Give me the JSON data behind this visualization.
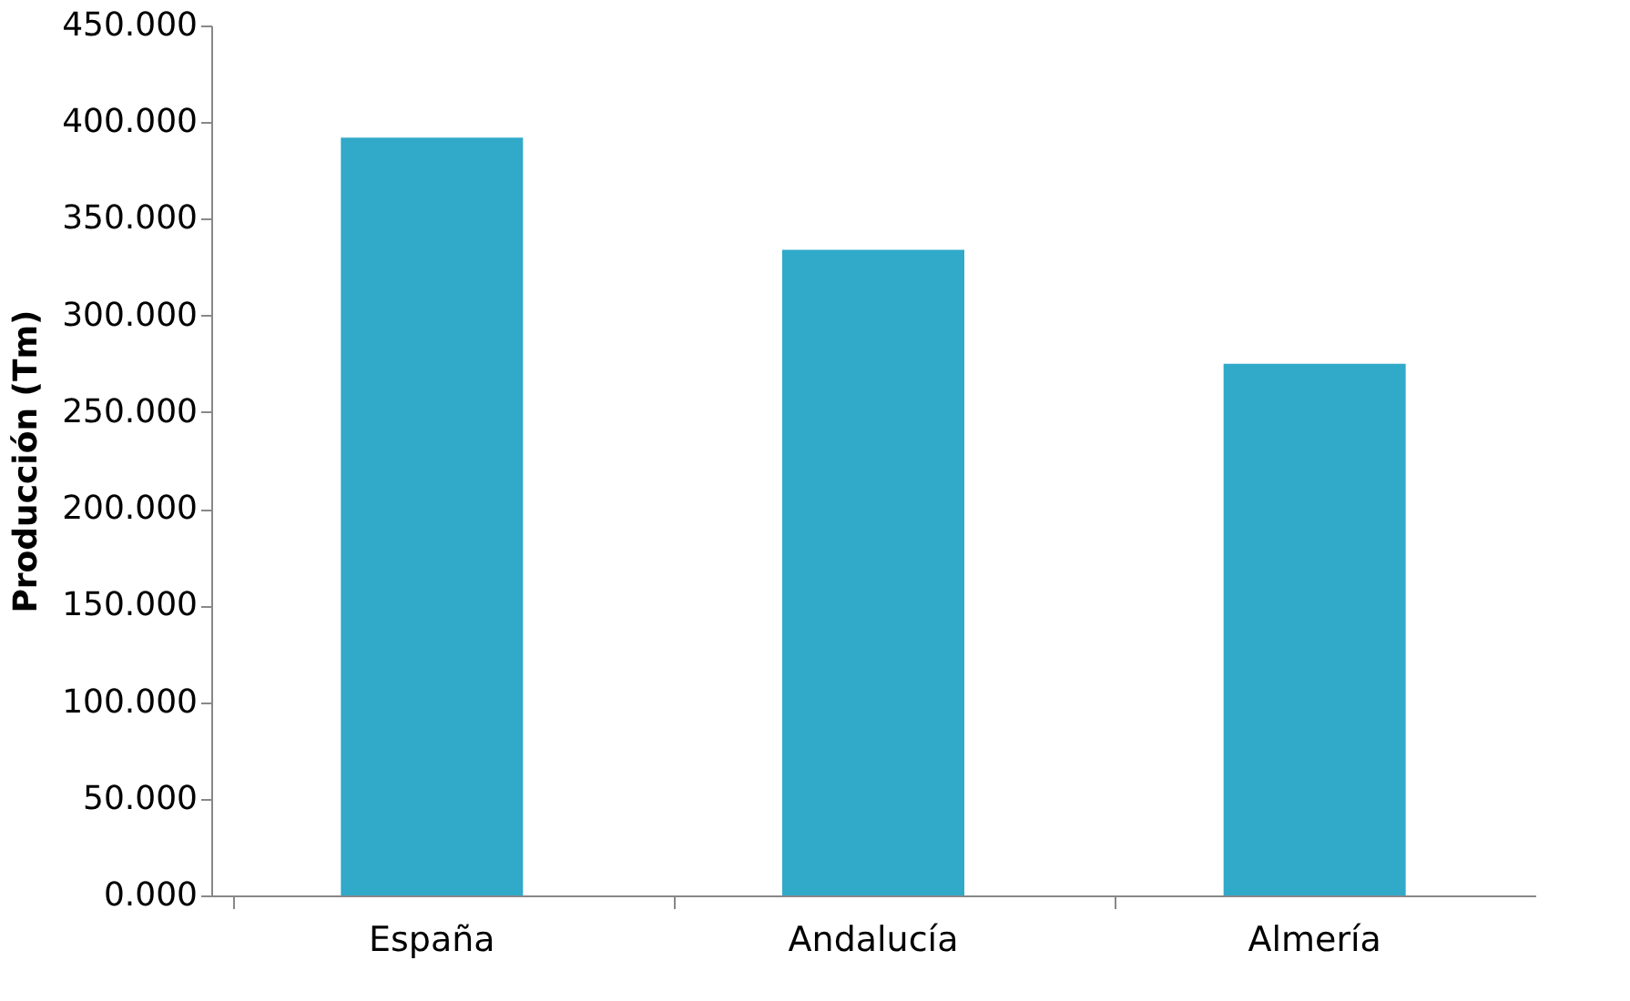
{
  "chart_data": {
    "type": "bar",
    "ylabel": "Producción (Tm)",
    "categories": [
      "España",
      "Andalucía",
      "Almería"
    ],
    "values": [
      392,
      334,
      275
    ],
    "color": "#31a9c9",
    "ylim": [
      0,
      450
    ],
    "yticks": [
      {
        "value": 0,
        "label": "0.000"
      },
      {
        "value": 50,
        "label": "50.000"
      },
      {
        "value": 100,
        "label": "100.000"
      },
      {
        "value": 150,
        "label": "150.000"
      },
      {
        "value": 200,
        "label": "200.000"
      },
      {
        "value": 250,
        "label": "250.000"
      },
      {
        "value": 300,
        "label": "300.000"
      },
      {
        "value": 350,
        "label": "350.000"
      },
      {
        "value": 400,
        "label": "400.000"
      },
      {
        "value": 450,
        "label": "450.000"
      }
    ],
    "grid": false,
    "legend": false
  }
}
